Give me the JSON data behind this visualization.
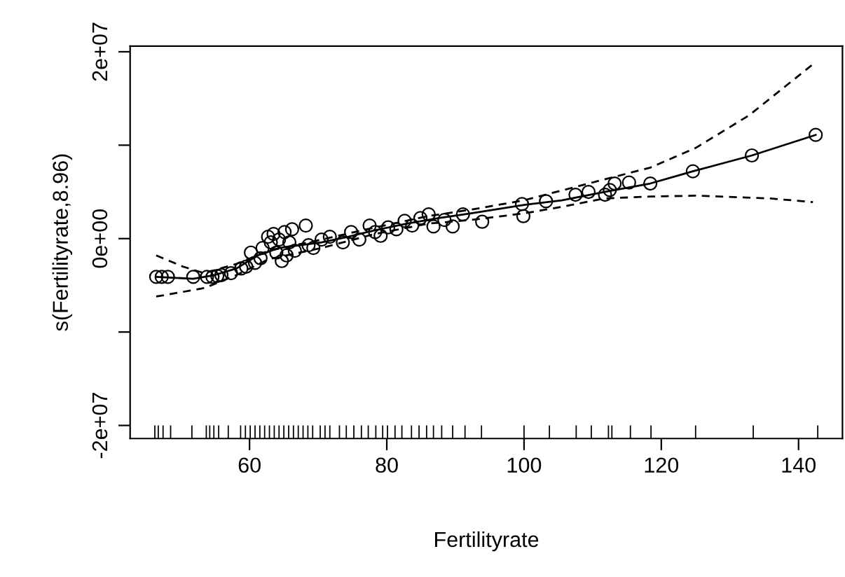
{
  "chart_data": {
    "type": "line",
    "xlabel": "Fertilityrate",
    "ylabel": "s(Fertilityrate,8.96)",
    "xlim": [
      42.6,
      146.4
    ],
    "xticks": [
      60,
      80,
      100,
      120,
      140
    ],
    "ylim": [
      -21400000,
      20600000
    ],
    "yticks": [
      {
        "value": -20000000,
        "label": "-2e+07"
      },
      {
        "value": -10000000,
        "label": null
      },
      {
        "value": 0,
        "label": "0e+00"
      },
      {
        "value": 10000000,
        "label": null
      },
      {
        "value": 20000000,
        "label": "2e+07"
      }
    ],
    "grid": false,
    "legend": false,
    "series": [
      {
        "color": "#000000",
        "line_style": "solid",
        "marker": "none",
        "x": [
          46.4,
          51.8,
          54.9,
          58.1,
          61.2,
          64.3,
          67.4,
          70.5,
          74.4,
          78.3,
          82.9,
          87.6,
          92.3,
          100,
          105.5,
          111.7,
          118.4,
          124.6,
          133.2,
          142.5
        ],
        "values": [
          -4100000,
          -4300000,
          -3900000,
          -3200000,
          -1800000,
          -1000000,
          -700000,
          -400000,
          200000,
          900000,
          1600000,
          2200000,
          2700000,
          3600000,
          4100000,
          5000000,
          5900000,
          7200000,
          8900000,
          11100000
        ]
      },
      {
        "type": "line",
        "color": "#000000",
        "line_style": "dashed",
        "marker": "none",
        "x": [
          46.4,
          50.3,
          53.4,
          58.1,
          62.8,
          70.5,
          78.3,
          86.0,
          92.3,
          100,
          109.4,
          118.4,
          125,
          132.8,
          142.5
        ],
        "values": [
          -1800000,
          -3000000,
          -3700000,
          -2700000,
          -1300000,
          -100000,
          1200000,
          2400000,
          3100000,
          4100000,
          5900000,
          7600000,
          9700000,
          13200000,
          18900000
        ]
      },
      {
        "type": "line",
        "color": "#000000",
        "line_style": "dashed",
        "marker": "none",
        "x": [
          46.4,
          53.4,
          58.1,
          62.8,
          70.5,
          78.3,
          86.0,
          92.3,
          100,
          105.5,
          111.7,
          118.4,
          125,
          135.9,
          142.1
        ],
        "values": [
          -6200000,
          -5300000,
          -3900000,
          -2200000,
          -1000000,
          500000,
          1600000,
          2000000,
          2700000,
          3400000,
          4300000,
          4500000,
          4600000,
          4300000,
          3900000
        ]
      },
      {
        "type": "scatter",
        "color": "#000000",
        "marker": "circle",
        "x": [
          46.4,
          47.2,
          48.1,
          51.8,
          53.8,
          54.6,
          55.3,
          55.9,
          57.3,
          58.8,
          59.5,
          60.2,
          60.8,
          61.6,
          61.9,
          62.7,
          63.1,
          63.5,
          63.9,
          64.3,
          64.7,
          65.1,
          65.4,
          65.8,
          66.2,
          66.6,
          68.2,
          68.6,
          69.3,
          70.5,
          71.7,
          73.6,
          74.8,
          76.0,
          77.5,
          78.3,
          79.1,
          80.2,
          81.4,
          82.6,
          83.7,
          84.9,
          86.1,
          86.8,
          88.4,
          89.6,
          91.1,
          93.9,
          99.7,
          99.9,
          103.2,
          107.5,
          109.4,
          111.8,
          112.5,
          113.2,
          115.3,
          118.4,
          124.6,
          133.2,
          142.5
        ],
        "values": [
          -4100000,
          -4100000,
          -4100000,
          -4100000,
          -4100000,
          -4100000,
          -4000000,
          -3900000,
          -3700000,
          -3200000,
          -3000000,
          -1500000,
          -2600000,
          -2100000,
          -1000000,
          200000,
          -400000,
          500000,
          -1500000,
          -100000,
          -2400000,
          700000,
          -1800000,
          -400000,
          1000000,
          -1300000,
          1400000,
          -700000,
          -1000000,
          -100000,
          200000,
          -400000,
          700000,
          -100000,
          1400000,
          700000,
          300000,
          1200000,
          1000000,
          1900000,
          1400000,
          2200000,
          2600000,
          1300000,
          2000000,
          1300000,
          2600000,
          1800000,
          3700000,
          2400000,
          4000000,
          4700000,
          5000000,
          4700000,
          5200000,
          5900000,
          6000000,
          5900000,
          7200000,
          8900000,
          11100000
        ]
      },
      {
        "type": "bar",
        "color": "#000000",
        "values": [
          1400000,
          1400000,
          1400000,
          1400000,
          1400000,
          1400000,
          1400000,
          1400000,
          1400000,
          1400000,
          1400000,
          1400000,
          1400000,
          1400000,
          1400000,
          1400000,
          1400000,
          1400000,
          1400000,
          1400000,
          1400000,
          1400000,
          1400000,
          1400000,
          1400000,
          1400000,
          1400000,
          1400000,
          1400000,
          1400000,
          1400000,
          1400000,
          1400000,
          1400000,
          1400000,
          1400000,
          1400000,
          1400000,
          1400000,
          1400000,
          1400000,
          1400000,
          1400000,
          1400000,
          1400000,
          1400000,
          1400000,
          1400000,
          1400000,
          1400000,
          1400000,
          1400000,
          1400000,
          1400000,
          1400000,
          1400000,
          1400000,
          1400000
        ],
        "base": [
          -21400000,
          -21400000,
          -21400000,
          -21400000,
          -21400000,
          -21400000,
          -21400000,
          -21400000,
          -21400000,
          -21400000,
          -21400000,
          -21400000,
          -21400000,
          -21400000,
          -21400000,
          -21400000,
          -21400000,
          -21400000,
          -21400000,
          -21400000,
          -21400000,
          -21400000,
          -21400000,
          -21400000,
          -21400000,
          -21400000,
          -21400000,
          -21400000,
          -21400000,
          -21400000,
          -21400000,
          -21400000,
          -21400000,
          -21400000,
          -21400000,
          -21400000,
          -21400000,
          -21400000,
          -21400000,
          -21400000,
          -21400000,
          -21400000,
          -21400000,
          -21400000,
          -21400000,
          -21400000,
          -21400000,
          -21400000,
          -21400000,
          -21400000,
          -21400000,
          -21400000,
          -21400000,
          -21400000,
          -21400000,
          -21400000,
          -21400000,
          -21400000
        ],
        "x": [
          46.2,
          46.7,
          47.4,
          48.5,
          51.6,
          53.7,
          54.2,
          54.8,
          55.5,
          56.9,
          58.7,
          59.4,
          60.1,
          60.8,
          61.5,
          62.2,
          62.9,
          63.6,
          64.3,
          65.0,
          65.7,
          66.4,
          67.1,
          67.8,
          68.5,
          69.2,
          70.3,
          71.0,
          71.7,
          73.1,
          74.1,
          75.2,
          76.3,
          77.3,
          78.4,
          79.4,
          80.1,
          81.2,
          82.2,
          83.6,
          84.7,
          85.8,
          86.8,
          88.0,
          89.6,
          91.4,
          93.8,
          100.0,
          103.7,
          107.6,
          109.8,
          112.3,
          112.8,
          115.5,
          118.5,
          125.0,
          133.4,
          142.8
        ]
      }
    ]
  }
}
